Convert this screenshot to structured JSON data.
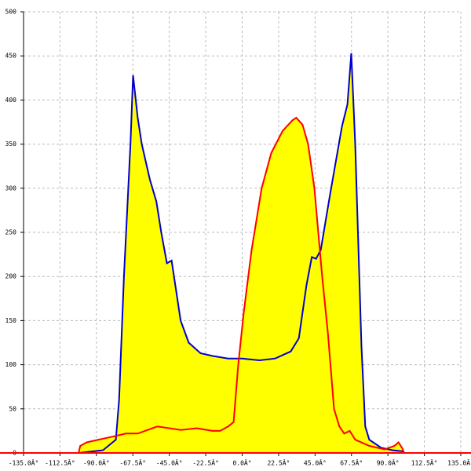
{
  "chart_data": {
    "type": "area-line",
    "xlim": [
      -135,
      135
    ],
    "ylim": [
      0,
      500
    ],
    "xticks": [
      {
        "value": -135,
        "label": "-135.0Â°"
      },
      {
        "value": -112.5,
        "label": "-112.5Â°"
      },
      {
        "value": -90,
        "label": "-90.0Â°"
      },
      {
        "value": -67.5,
        "label": "-67.5Â°"
      },
      {
        "value": -45,
        "label": "-45.0Â°"
      },
      {
        "value": -22.5,
        "label": "-22.5Â°"
      },
      {
        "value": 0,
        "label": "0.0Â°"
      },
      {
        "value": 22.5,
        "label": "22.5Â°"
      },
      {
        "value": 45,
        "label": "45.0Â°"
      },
      {
        "value": 67.5,
        "label": "67.5Â°"
      },
      {
        "value": 90,
        "label": "90.0Â°"
      },
      {
        "value": 112.5,
        "label": "112.5Â°"
      },
      {
        "value": 135,
        "label": "135.0Â°"
      }
    ],
    "yticks": [
      0,
      50,
      100,
      150,
      200,
      250,
      300,
      350,
      400,
      450,
      500
    ],
    "grid": true,
    "axis_color": "#ff0000",
    "series": [
      {
        "color": "#0000cc",
        "fill": "#ffff00",
        "x": [
          -101,
          -86,
          -78,
          -76,
          -73,
          -69,
          -67.4,
          -64.5,
          -62,
          -57,
          -53,
          -50,
          -46.5,
          -43.6,
          -41.7,
          -38,
          -33,
          -25.7,
          -18.4,
          -8.7,
          0,
          10.7,
          20.4,
          30,
          35,
          39.7,
          43,
          45.6,
          48.5,
          54,
          61.6,
          65,
          67.4,
          69.8,
          73.7,
          76,
          78.5,
          85.8,
          93,
          99,
          100
        ],
        "values": [
          0,
          3,
          15,
          60,
          200,
          350,
          428,
          380,
          350,
          310,
          285,
          250,
          215,
          218,
          195,
          150,
          125,
          113,
          110,
          107,
          107,
          105,
          107,
          115,
          130,
          190,
          222,
          220,
          230,
          290,
          370,
          395,
          453,
          350,
          120,
          30,
          15,
          6,
          3,
          2,
          0
        ]
      },
      {
        "color": "#ff0000",
        "fill": "#ffff00",
        "x": [
          -101,
          -100,
          -96,
          -88.7,
          -81.4,
          -71.7,
          -64.5,
          -57,
          -52.4,
          -45,
          -37.8,
          -28,
          -18.4,
          -13.6,
          -8.7,
          -5.3,
          -2.4,
          1,
          5.8,
          12,
          18,
          25,
          31,
          33.4,
          37.3,
          40.7,
          44.6,
          49.4,
          53,
          56.7,
          60,
          63,
          66.4,
          69.8,
          78.5,
          88,
          94,
          96.5,
          99,
          100
        ],
        "values": [
          0,
          8,
          12,
          15,
          18,
          22,
          22,
          27,
          30,
          28,
          26,
          28,
          25,
          25,
          30,
          35,
          100,
          160,
          230,
          300,
          340,
          365,
          377,
          380,
          372,
          350,
          300,
          200,
          135,
          50,
          30,
          22,
          25,
          15,
          8,
          4,
          8,
          12,
          5,
          0
        ]
      }
    ]
  }
}
